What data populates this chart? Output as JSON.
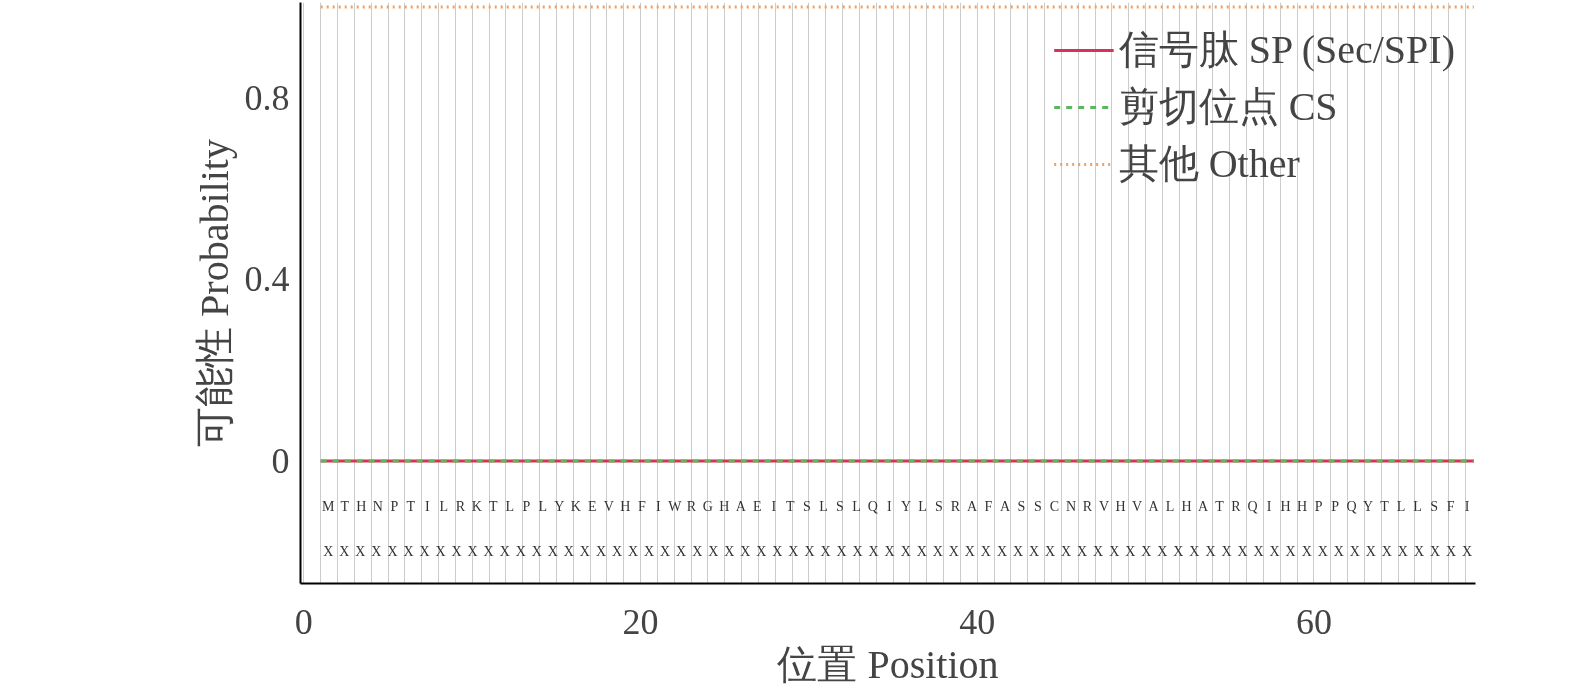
{
  "chart_data": {
    "type": "line",
    "xlabel": "位置 Position",
    "ylabel": "可能性 Probability",
    "x": [
      1,
      69.5
    ],
    "series": [
      {
        "name": "信号肽 SP (Sec/SPI)",
        "color": "#d6335a",
        "values": [
          0,
          0
        ],
        "line_style": "solid"
      },
      {
        "name": "剪切位点 CS",
        "color": "#5cb85c",
        "values": [
          0,
          0
        ],
        "line_style": "dashed"
      },
      {
        "name": "其他 Other",
        "color": "#f0a060",
        "values": [
          1,
          1
        ],
        "line_style": "dotted"
      }
    ],
    "annotations": [
      "M T H N P T I L R K T L P L Y K E V H F I W R G H A E I T S L S L Q I Y L S R A F A S S C N R V H V A L H A T R Q I H H P P Q Y T L L S F I",
      "X X X X X X X X X X X X X X X X X X X X X X X X X X X X X X X X X X X X X X X X X X X X X X X X X X X X X X X X X X X X X X X X X X X X X X X X"
    ],
    "xlim": [
      -0.2,
      69.6
    ],
    "ylim": [
      -0.27,
      1.01
    ],
    "xticks": [
      0,
      20,
      40,
      60
    ],
    "yticks": [
      0,
      0.4,
      0.8
    ],
    "grid": "x",
    "legend": "top right",
    "marker": "none"
  }
}
